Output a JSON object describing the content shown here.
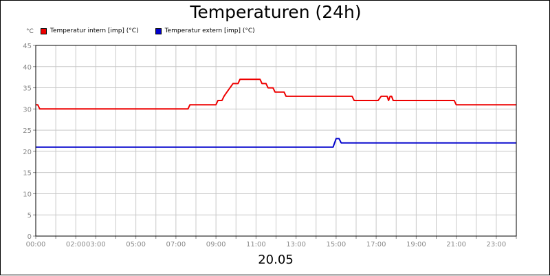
{
  "chart_data": {
    "type": "line",
    "title": "Temperaturen (24h)",
    "y_unit": "°C",
    "date_label": "20.05",
    "ylim": [
      0,
      45
    ],
    "yticks": [
      0,
      5,
      10,
      15,
      20,
      25,
      30,
      35,
      40,
      45
    ],
    "xlim": [
      0,
      24
    ],
    "xticks": [
      {
        "hour": 0,
        "label": "00:00"
      },
      {
        "hour": 2,
        "label": "02:00"
      },
      {
        "hour": 3,
        "label": "03:00"
      },
      {
        "hour": 5,
        "label": "05:00"
      },
      {
        "hour": 7,
        "label": "07:00"
      },
      {
        "hour": 9,
        "label": "09:00"
      },
      {
        "hour": 11,
        "label": "11:00"
      },
      {
        "hour": 13,
        "label": "13:00"
      },
      {
        "hour": 15,
        "label": "15:00"
      },
      {
        "hour": 17,
        "label": "17:00"
      },
      {
        "hour": 19,
        "label": "19:00"
      },
      {
        "hour": 21,
        "label": "21:00"
      },
      {
        "hour": 23,
        "label": "23:00"
      }
    ],
    "grid": true,
    "legend_position": "top-left",
    "series": [
      {
        "name": "Temperatur intern [imp] (°C)",
        "color": "#ee0000",
        "points": [
          [
            0.0,
            31
          ],
          [
            0.1,
            31
          ],
          [
            0.2,
            30
          ],
          [
            7.6,
            30
          ],
          [
            7.7,
            31
          ],
          [
            9.0,
            31
          ],
          [
            9.1,
            32
          ],
          [
            9.3,
            32
          ],
          [
            9.4,
            33
          ],
          [
            9.55,
            34
          ],
          [
            9.7,
            35
          ],
          [
            9.85,
            36
          ],
          [
            10.1,
            36
          ],
          [
            10.2,
            37
          ],
          [
            11.2,
            37
          ],
          [
            11.3,
            36
          ],
          [
            11.5,
            36
          ],
          [
            11.6,
            35
          ],
          [
            11.85,
            35
          ],
          [
            11.95,
            34
          ],
          [
            12.4,
            34
          ],
          [
            12.5,
            33
          ],
          [
            15.8,
            33
          ],
          [
            15.9,
            32
          ],
          [
            17.1,
            32
          ],
          [
            17.25,
            33
          ],
          [
            17.55,
            33
          ],
          [
            17.62,
            32
          ],
          [
            17.7,
            33
          ],
          [
            17.77,
            33
          ],
          [
            17.85,
            32
          ],
          [
            20.9,
            32
          ],
          [
            21.0,
            31
          ],
          [
            24.0,
            31
          ]
        ]
      },
      {
        "name": "Temperatur extern [imp] (°C)",
        "color": "#0000cc",
        "points": [
          [
            0.0,
            21
          ],
          [
            14.85,
            21
          ],
          [
            15.0,
            23
          ],
          [
            15.15,
            23
          ],
          [
            15.25,
            22
          ],
          [
            24.0,
            22
          ]
        ]
      }
    ]
  }
}
